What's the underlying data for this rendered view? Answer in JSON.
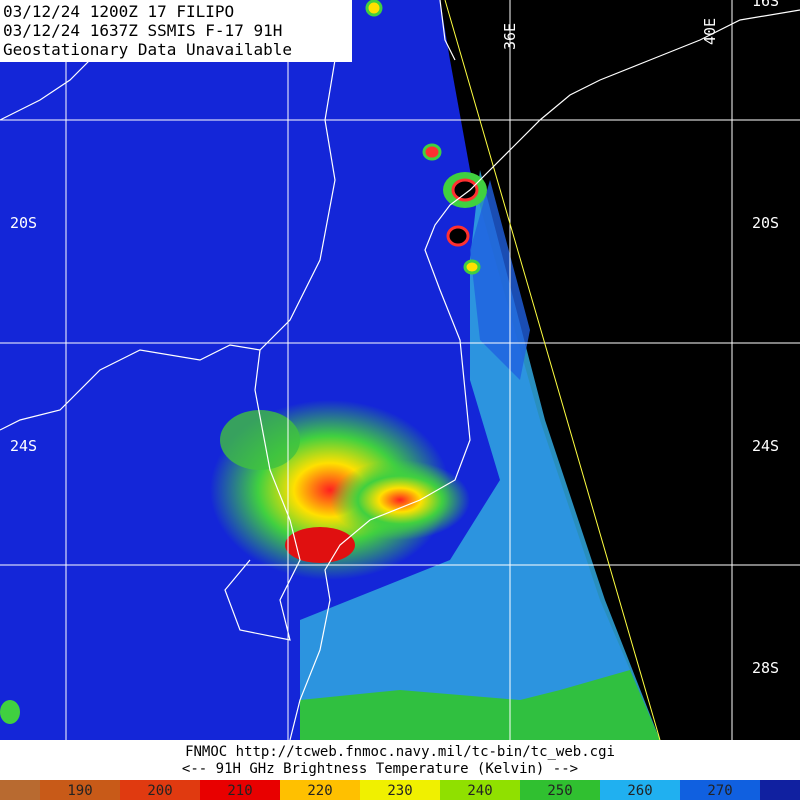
{
  "header": {
    "lines": [
      "03/12/24 1200Z  17 FILIPO",
      "03/12/24 1637Z  SSMIS F-17 91H",
      "Geostationary Data Unavailable"
    ]
  },
  "grid_labels": {
    "lon": [
      "36E",
      "40E"
    ],
    "lat": [
      "20S",
      "24S",
      "28S"
    ],
    "top": "16S"
  },
  "footer": {
    "lines": [
      "FNMOC  http://tcweb.fnmoc.navy.mil/tc-bin/tc_web.cgi",
      "<--  91H GHz Brightness Temperature (Kelvin)  -->"
    ]
  },
  "colorbar": {
    "labels": [
      190,
      200,
      210,
      220,
      230,
      240,
      250,
      260,
      270
    ]
  }
}
